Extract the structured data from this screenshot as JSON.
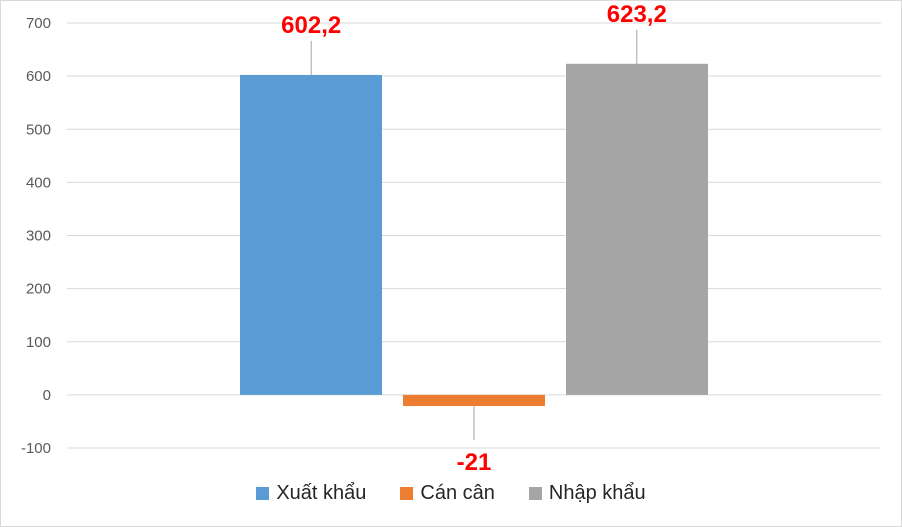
{
  "chart_data": {
    "type": "bar",
    "title": "",
    "xlabel": "",
    "ylabel": "",
    "ylim": [
      -100,
      700
    ],
    "yticks": [
      700,
      600,
      500,
      400,
      300,
      200,
      100,
      0,
      -100
    ],
    "ytick_labels": [
      "700",
      "600",
      "500",
      "400",
      "300",
      "200",
      "100",
      "0",
      "-100"
    ],
    "grid": true,
    "legend_position": "bottom",
    "series": [
      {
        "name": "Xuất khẩu",
        "value": 602.2,
        "label": "602,2",
        "color": "#5b9bd5"
      },
      {
        "name": "Cán cân",
        "value": -21,
        "label": "-21",
        "color": "#ed7d31"
      },
      {
        "name": "Nhập khẩu",
        "value": 623.2,
        "label": "623,2",
        "color": "#a5a5a5"
      }
    ]
  }
}
